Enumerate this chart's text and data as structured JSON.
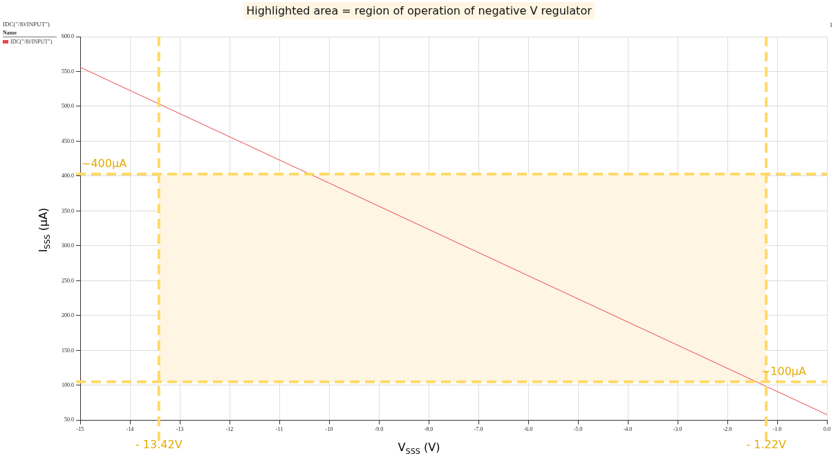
{
  "chart_data": {
    "type": "line",
    "title": "Highlighted area = region of operation of negative V regulator",
    "xlabel": "V$_{SSS}$ (V)",
    "ylabel": "I$_{SSS}$ (µA)",
    "legend_title": "Name",
    "annotations": [
      "IDC(\"/I0/INPUT\")",
      "1"
    ],
    "x": [
      -15,
      0
    ],
    "series": [
      {
        "name": "IDC(\"/I0/INPUT\")",
        "color": "#e8474b",
        "values": [
          556,
          58
        ]
      }
    ],
    "xlim": [
      -15,
      0
    ],
    "xticks": [
      -15,
      -14,
      -13,
      -12,
      -11,
      -10,
      {
        "value": -9,
        "label": "-9.0"
      },
      {
        "value": -8,
        "label": "-8.0"
      },
      {
        "value": -7,
        "label": "-7.0"
      },
      {
        "value": -6,
        "label": "-6.0"
      },
      {
        "value": -5,
        "label": "-5.0"
      },
      {
        "value": -4,
        "label": "-4.0"
      },
      {
        "value": -3,
        "label": "-3.0"
      },
      {
        "value": -2,
        "label": "-2.0"
      },
      {
        "value": -1,
        "label": "-1.0"
      },
      {
        "value": 0,
        "label": "0.0"
      }
    ],
    "ylim": [
      50,
      600
    ],
    "yticks": [
      {
        "value": 50,
        "label": "50.0"
      },
      {
        "value": 100,
        "label": "100.0"
      },
      {
        "value": 150,
        "label": "150.0"
      },
      {
        "value": 200,
        "label": "200.0"
      },
      {
        "value": 250,
        "label": "250.0"
      },
      {
        "value": 300,
        "label": "300.0"
      },
      {
        "value": 350,
        "label": "350.0"
      },
      {
        "value": 400,
        "label": "400.0"
      },
      {
        "value": 450,
        "label": "450.0"
      },
      {
        "value": 500,
        "label": "500.0"
      },
      {
        "value": 550,
        "label": "550.0"
      },
      {
        "value": 600,
        "label": "600.0"
      }
    ],
    "ref_lines": [
      {
        "axis": "x",
        "value": -13.42,
        "label": "- 13.42V",
        "color": "#ffd966",
        "line_style": "dashed"
      },
      {
        "axis": "x",
        "value": -1.22,
        "label": "- 1.22V",
        "color": "#ffd966",
        "line_style": "dashed"
      },
      {
        "axis": "y",
        "value": 403,
        "label": "~400µA",
        "color": "#ffd966",
        "line_style": "dashed"
      },
      {
        "axis": "y",
        "value": 105,
        "label": "~100µA",
        "color": "#ffd966",
        "line_style": "dashed"
      }
    ],
    "bands": [
      {
        "axis": "x",
        "from": -13.42,
        "to": -1.22,
        "color": "#fff5e3"
      }
    ],
    "grid": true,
    "legend": "top left",
    "marker": "none",
    "line_style": "solid"
  }
}
